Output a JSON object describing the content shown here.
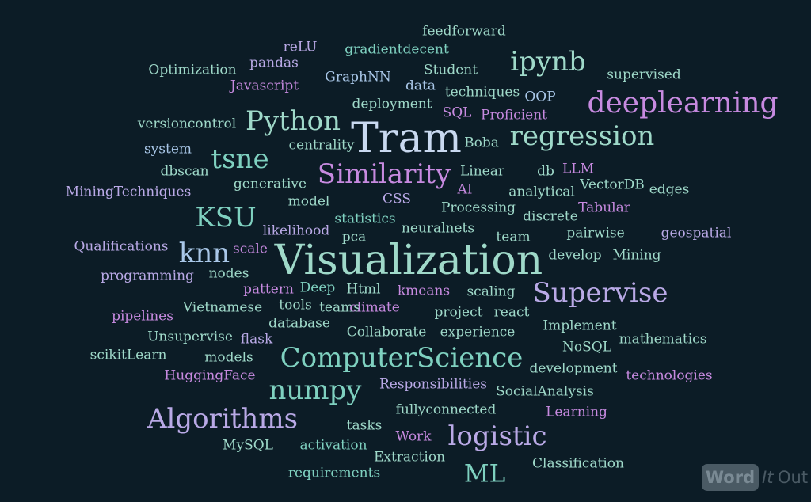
{
  "words": [
    {
      "text": "feedforward",
      "cls": "c-sea"
    },
    {
      "text": "reLU",
      "cls": "c-lav"
    },
    {
      "text": "gradientdecent",
      "cls": "c-teal"
    },
    {
      "text": "pandas",
      "cls": "c-lav"
    },
    {
      "text": "ipynb",
      "cls": "c-sea"
    },
    {
      "text": "Optimization",
      "cls": "c-sea"
    },
    {
      "text": "Student",
      "cls": "c-sea"
    },
    {
      "text": "GraphNN",
      "cls": "c-blue"
    },
    {
      "text": "supervised",
      "cls": "c-sea"
    },
    {
      "text": "Javascript",
      "cls": "c-pur"
    },
    {
      "text": "data",
      "cls": "c-blue"
    },
    {
      "text": "techniques",
      "cls": "c-sea"
    },
    {
      "text": "OOP",
      "cls": "c-blue"
    },
    {
      "text": "deployment",
      "cls": "c-sea"
    },
    {
      "text": "deeplearning",
      "cls": "c-pur"
    },
    {
      "text": "SQL",
      "cls": "c-pur"
    },
    {
      "text": "Proficient",
      "cls": "c-pur"
    },
    {
      "text": "Python",
      "cls": "c-sea"
    },
    {
      "text": "versioncontrol",
      "cls": "c-sea"
    },
    {
      "text": "Tram",
      "cls": "c-pale"
    },
    {
      "text": "regression",
      "cls": "c-sea"
    },
    {
      "text": "centrality",
      "cls": "c-sea"
    },
    {
      "text": "Boba",
      "cls": "c-sea"
    },
    {
      "text": "system",
      "cls": "c-blue"
    },
    {
      "text": "tsne",
      "cls": "c-teal"
    },
    {
      "text": "Similarity",
      "cls": "c-pur"
    },
    {
      "text": "dbscan",
      "cls": "c-sea"
    },
    {
      "text": "Linear",
      "cls": "c-sea"
    },
    {
      "text": "db",
      "cls": "c-sea"
    },
    {
      "text": "LLM",
      "cls": "c-pur"
    },
    {
      "text": "generative",
      "cls": "c-sea"
    },
    {
      "text": "VectorDB",
      "cls": "c-sea"
    },
    {
      "text": "MiningTechniques",
      "cls": "c-lav"
    },
    {
      "text": "AI",
      "cls": "c-pur"
    },
    {
      "text": "analytical",
      "cls": "c-sea"
    },
    {
      "text": "edges",
      "cls": "c-sea"
    },
    {
      "text": "model",
      "cls": "c-sea"
    },
    {
      "text": "CSS",
      "cls": "c-lav"
    },
    {
      "text": "Processing",
      "cls": "c-sea"
    },
    {
      "text": "Tabular",
      "cls": "c-pur"
    },
    {
      "text": "KSU",
      "cls": "c-teal"
    },
    {
      "text": "statistics",
      "cls": "c-teal"
    },
    {
      "text": "discrete",
      "cls": "c-sea"
    },
    {
      "text": "likelihood",
      "cls": "c-lav"
    },
    {
      "text": "neuralnets",
      "cls": "c-sea"
    },
    {
      "text": "pairwise",
      "cls": "c-sea"
    },
    {
      "text": "geospatial",
      "cls": "c-lav"
    },
    {
      "text": "pca",
      "cls": "c-sea"
    },
    {
      "text": "team",
      "cls": "c-sea"
    },
    {
      "text": "Qualifications",
      "cls": "c-lav"
    },
    {
      "text": "knn",
      "cls": "c-blue"
    },
    {
      "text": "scale",
      "cls": "c-pur"
    },
    {
      "text": "Visualization",
      "cls": "c-sea"
    },
    {
      "text": "develop",
      "cls": "c-sea"
    },
    {
      "text": "Mining",
      "cls": "c-sea"
    },
    {
      "text": "programming",
      "cls": "c-lav"
    },
    {
      "text": "nodes",
      "cls": "c-sea"
    },
    {
      "text": "Supervise",
      "cls": "c-lav"
    },
    {
      "text": "pattern",
      "cls": "c-pur"
    },
    {
      "text": "Deep",
      "cls": "c-teal"
    },
    {
      "text": "Html",
      "cls": "c-sea"
    },
    {
      "text": "kmeans",
      "cls": "c-pur"
    },
    {
      "text": "scaling",
      "cls": "c-sea"
    },
    {
      "text": "Vietnamese",
      "cls": "c-sea"
    },
    {
      "text": "tools",
      "cls": "c-sea"
    },
    {
      "text": "teams",
      "cls": "c-sea"
    },
    {
      "text": "climate",
      "cls": "c-pur"
    },
    {
      "text": "project",
      "cls": "c-sea"
    },
    {
      "text": "react",
      "cls": "c-sea"
    },
    {
      "text": "pipelines",
      "cls": "c-pur"
    },
    {
      "text": "database",
      "cls": "c-sea"
    },
    {
      "text": "Implement",
      "cls": "c-sea"
    },
    {
      "text": "Unsupervise",
      "cls": "c-sea"
    },
    {
      "text": "flask",
      "cls": "c-lav"
    },
    {
      "text": "Collaborate",
      "cls": "c-sea"
    },
    {
      "text": "experience",
      "cls": "c-sea"
    },
    {
      "text": "mathematics",
      "cls": "c-sea"
    },
    {
      "text": "NoSQL",
      "cls": "c-sea"
    },
    {
      "text": "scikitLearn",
      "cls": "c-sea"
    },
    {
      "text": "models",
      "cls": "c-sea"
    },
    {
      "text": "ComputerScience",
      "cls": "c-teal"
    },
    {
      "text": "development",
      "cls": "c-sea"
    },
    {
      "text": "HuggingFace",
      "cls": "c-pur"
    },
    {
      "text": "technologies",
      "cls": "c-pur"
    },
    {
      "text": "numpy",
      "cls": "c-teal"
    },
    {
      "text": "Responsibilities",
      "cls": "c-lav"
    },
    {
      "text": "SocialAnalysis",
      "cls": "c-sea"
    },
    {
      "text": "Algorithms",
      "cls": "c-lav"
    },
    {
      "text": "fullyconnected",
      "cls": "c-sea"
    },
    {
      "text": "Learning",
      "cls": "c-pur"
    },
    {
      "text": "tasks",
      "cls": "c-sea"
    },
    {
      "text": "logistic",
      "cls": "c-lav"
    },
    {
      "text": "Work",
      "cls": "c-pur"
    },
    {
      "text": "MySQL",
      "cls": "c-sea"
    },
    {
      "text": "activation",
      "cls": "c-teal"
    },
    {
      "text": "Extraction",
      "cls": "c-sea"
    },
    {
      "text": "Classification",
      "cls": "c-sea"
    },
    {
      "text": "requirements",
      "cls": "c-teal"
    },
    {
      "text": "ML",
      "cls": "c-teal"
    }
  ],
  "logo": {
    "word": "Word",
    "it": "It",
    "out": "Out"
  }
}
